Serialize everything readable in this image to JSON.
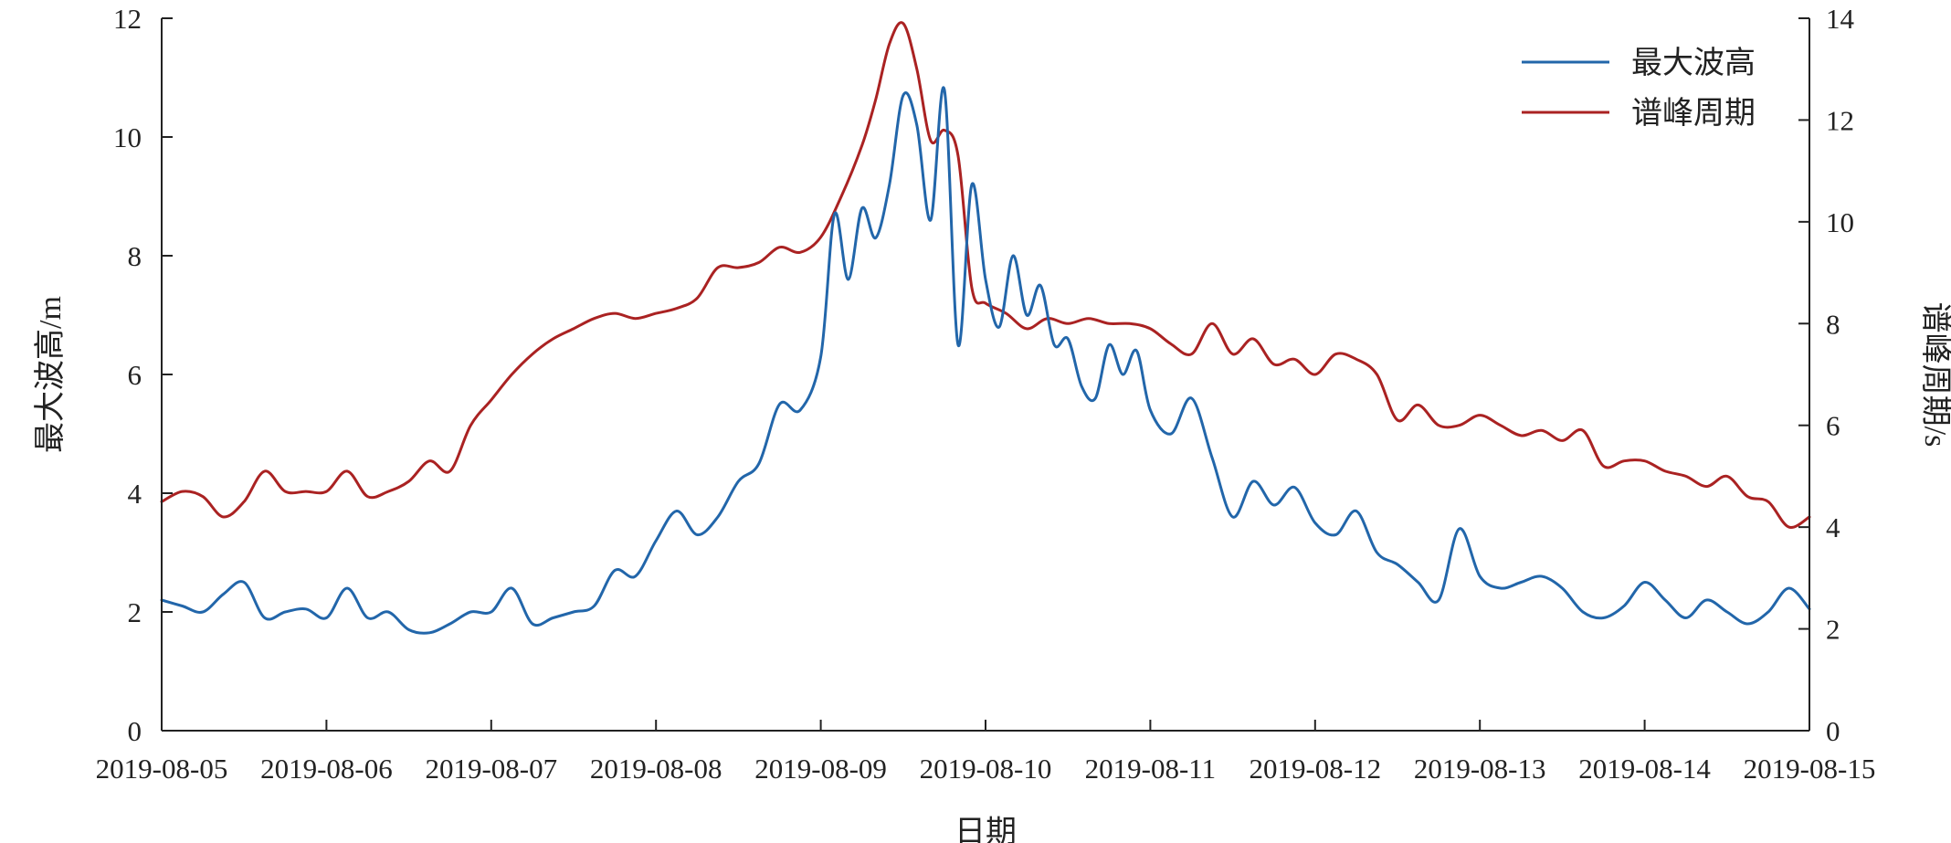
{
  "chart_data": {
    "type": "line",
    "title": "",
    "xlabel": "日期",
    "ylabel_left": "最大波高/m",
    "ylabel_right": "谱峰周期/s",
    "ylim_left": [
      0,
      12
    ],
    "ylim_right": [
      0,
      14
    ],
    "yticks_left": [
      "0",
      "2",
      "4",
      "6",
      "8",
      "10",
      "12"
    ],
    "yticks_right": [
      "0",
      "2",
      "4",
      "6",
      "8",
      "10",
      "12",
      "14"
    ],
    "xlim": [
      "2019-08-05",
      "2019-08-15"
    ],
    "xticks": [
      "2019-08-05",
      "2019-08-06",
      "2019-08-07",
      "2019-08-08",
      "2019-08-09",
      "2019-08-10",
      "2019-08-11",
      "2019-08-12",
      "2019-08-13",
      "2019-08-14",
      "2019-08-15"
    ],
    "grid": false,
    "legend_position": "top-right",
    "series": [
      {
        "name": "最大波高",
        "axis": "left",
        "color": "#2266aa",
        "x": [
          "2019-08-05 00:00",
          "2019-08-05 03:00",
          "2019-08-05 06:00",
          "2019-08-05 09:00",
          "2019-08-05 12:00",
          "2019-08-05 15:00",
          "2019-08-05 18:00",
          "2019-08-05 21:00",
          "2019-08-06 00:00",
          "2019-08-06 03:00",
          "2019-08-06 06:00",
          "2019-08-06 09:00",
          "2019-08-06 12:00",
          "2019-08-06 15:00",
          "2019-08-06 18:00",
          "2019-08-06 21:00",
          "2019-08-07 00:00",
          "2019-08-07 03:00",
          "2019-08-07 06:00",
          "2019-08-07 09:00",
          "2019-08-07 12:00",
          "2019-08-07 15:00",
          "2019-08-07 18:00",
          "2019-08-07 21:00",
          "2019-08-08 00:00",
          "2019-08-08 03:00",
          "2019-08-08 06:00",
          "2019-08-08 09:00",
          "2019-08-08 12:00",
          "2019-08-08 15:00",
          "2019-08-08 18:00",
          "2019-08-08 21:00",
          "2019-08-09 00:00",
          "2019-08-09 02:00",
          "2019-08-09 04:00",
          "2019-08-09 06:00",
          "2019-08-09 08:00",
          "2019-08-09 10:00",
          "2019-08-09 12:00",
          "2019-08-09 14:00",
          "2019-08-09 16:00",
          "2019-08-09 18:00",
          "2019-08-09 20:00",
          "2019-08-09 22:00",
          "2019-08-10 00:00",
          "2019-08-10 02:00",
          "2019-08-10 04:00",
          "2019-08-10 06:00",
          "2019-08-10 08:00",
          "2019-08-10 10:00",
          "2019-08-10 12:00",
          "2019-08-10 14:00",
          "2019-08-10 16:00",
          "2019-08-10 18:00",
          "2019-08-10 20:00",
          "2019-08-10 22:00",
          "2019-08-11 00:00",
          "2019-08-11 03:00",
          "2019-08-11 06:00",
          "2019-08-11 09:00",
          "2019-08-11 12:00",
          "2019-08-11 15:00",
          "2019-08-11 18:00",
          "2019-08-11 21:00",
          "2019-08-12 00:00",
          "2019-08-12 03:00",
          "2019-08-12 06:00",
          "2019-08-12 09:00",
          "2019-08-12 12:00",
          "2019-08-12 15:00",
          "2019-08-12 18:00",
          "2019-08-12 21:00",
          "2019-08-13 00:00",
          "2019-08-13 03:00",
          "2019-08-13 06:00",
          "2019-08-13 09:00",
          "2019-08-13 12:00",
          "2019-08-13 15:00",
          "2019-08-13 18:00",
          "2019-08-13 21:00",
          "2019-08-14 00:00",
          "2019-08-14 03:00",
          "2019-08-14 06:00",
          "2019-08-14 09:00",
          "2019-08-14 12:00",
          "2019-08-14 15:00",
          "2019-08-14 18:00",
          "2019-08-14 21:00",
          "2019-08-15 00:00"
        ],
        "values": [
          2.2,
          2.1,
          2.0,
          2.3,
          2.5,
          1.9,
          2.0,
          2.05,
          1.9,
          2.4,
          1.9,
          2.0,
          1.7,
          1.65,
          1.8,
          2.0,
          2.0,
          2.4,
          1.8,
          1.9,
          2.0,
          2.1,
          2.7,
          2.6,
          3.2,
          3.7,
          3.3,
          3.6,
          4.2,
          4.5,
          5.5,
          5.4,
          6.3,
          8.7,
          7.6,
          8.8,
          8.3,
          9.2,
          10.7,
          10.2,
          8.6,
          10.8,
          6.5,
          9.2,
          7.6,
          6.8,
          8.0,
          7.0,
          7.5,
          6.5,
          6.6,
          5.8,
          5.6,
          6.5,
          6.0,
          6.4,
          5.4,
          5.0,
          5.6,
          4.6,
          3.6,
          4.2,
          3.8,
          4.1,
          3.5,
          3.3,
          3.7,
          3.0,
          2.8,
          2.5,
          2.2,
          3.4,
          2.6,
          2.4,
          2.5,
          2.6,
          2.4,
          2.0,
          1.9,
          2.1,
          2.5,
          2.2,
          1.9,
          2.2,
          2.0,
          1.8,
          2.0,
          2.4,
          2.05
        ]
      },
      {
        "name": "谱峰周期",
        "axis": "right",
        "color": "#aa2222",
        "x": [
          "2019-08-05 00:00",
          "2019-08-05 03:00",
          "2019-08-05 06:00",
          "2019-08-05 09:00",
          "2019-08-05 12:00",
          "2019-08-05 15:00",
          "2019-08-05 18:00",
          "2019-08-05 21:00",
          "2019-08-06 00:00",
          "2019-08-06 03:00",
          "2019-08-06 06:00",
          "2019-08-06 09:00",
          "2019-08-06 12:00",
          "2019-08-06 15:00",
          "2019-08-06 18:00",
          "2019-08-06 21:00",
          "2019-08-07 00:00",
          "2019-08-07 03:00",
          "2019-08-07 06:00",
          "2019-08-07 09:00",
          "2019-08-07 12:00",
          "2019-08-07 15:00",
          "2019-08-07 18:00",
          "2019-08-07 21:00",
          "2019-08-08 00:00",
          "2019-08-08 03:00",
          "2019-08-08 06:00",
          "2019-08-08 09:00",
          "2019-08-08 12:00",
          "2019-08-08 15:00",
          "2019-08-08 18:00",
          "2019-08-08 21:00",
          "2019-08-09 00:00",
          "2019-08-09 03:00",
          "2019-08-09 06:00",
          "2019-08-09 08:00",
          "2019-08-09 10:00",
          "2019-08-09 12:00",
          "2019-08-09 14:00",
          "2019-08-09 16:00",
          "2019-08-09 18:00",
          "2019-08-09 20:00",
          "2019-08-09 22:00",
          "2019-08-10 00:00",
          "2019-08-10 03:00",
          "2019-08-10 06:00",
          "2019-08-10 09:00",
          "2019-08-10 12:00",
          "2019-08-10 15:00",
          "2019-08-10 18:00",
          "2019-08-10 21:00",
          "2019-08-11 00:00",
          "2019-08-11 03:00",
          "2019-08-11 06:00",
          "2019-08-11 09:00",
          "2019-08-11 12:00",
          "2019-08-11 15:00",
          "2019-08-11 18:00",
          "2019-08-11 21:00",
          "2019-08-12 00:00",
          "2019-08-12 03:00",
          "2019-08-12 06:00",
          "2019-08-12 09:00",
          "2019-08-12 12:00",
          "2019-08-12 15:00",
          "2019-08-12 18:00",
          "2019-08-12 21:00",
          "2019-08-13 00:00",
          "2019-08-13 03:00",
          "2019-08-13 06:00",
          "2019-08-13 09:00",
          "2019-08-13 12:00",
          "2019-08-13 15:00",
          "2019-08-13 18:00",
          "2019-08-13 21:00",
          "2019-08-14 00:00",
          "2019-08-14 03:00",
          "2019-08-14 06:00",
          "2019-08-14 09:00",
          "2019-08-14 12:00",
          "2019-08-14 15:00",
          "2019-08-14 18:00",
          "2019-08-14 21:00",
          "2019-08-15 00:00"
        ],
        "values": [
          4.5,
          4.7,
          4.6,
          4.2,
          4.5,
          5.1,
          4.7,
          4.7,
          4.7,
          5.1,
          4.6,
          4.7,
          4.9,
          5.3,
          5.1,
          6.0,
          6.5,
          7.0,
          7.4,
          7.7,
          7.9,
          8.1,
          8.2,
          8.1,
          8.2,
          8.3,
          8.5,
          9.1,
          9.1,
          9.2,
          9.5,
          9.4,
          9.7,
          10.5,
          11.5,
          12.4,
          13.5,
          13.9,
          13.0,
          11.6,
          11.8,
          11.3,
          8.7,
          8.4,
          8.2,
          7.9,
          8.1,
          8.0,
          8.1,
          8.0,
          8.0,
          7.9,
          7.6,
          7.4,
          8.0,
          7.4,
          7.7,
          7.2,
          7.3,
          7.0,
          7.4,
          7.3,
          7.0,
          6.1,
          6.4,
          6.0,
          6.0,
          6.2,
          6.0,
          5.8,
          5.9,
          5.7,
          5.9,
          5.2,
          5.3,
          5.3,
          5.1,
          5.0,
          4.8,
          5.0,
          4.6,
          4.5,
          4.0,
          4.2
        ]
      }
    ]
  }
}
